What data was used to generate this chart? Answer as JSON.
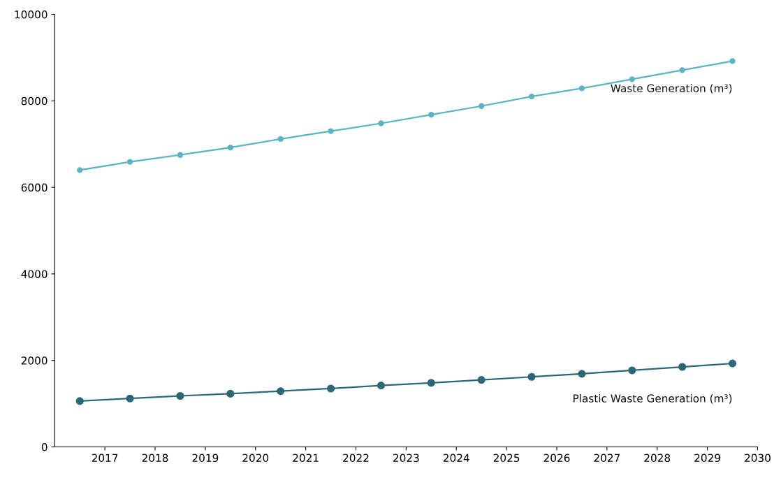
{
  "chart_data": {
    "type": "line",
    "x": [
      2016.5,
      2017.5,
      2018.5,
      2019.5,
      2020.5,
      2021.5,
      2022.5,
      2023.5,
      2024.5,
      2025.5,
      2026.5,
      2027.5,
      2028.5,
      2029.5
    ],
    "series": [
      {
        "name": "Waste Generation (m³)",
        "color": "#5ab4c5",
        "values": [
          6400,
          6590,
          6750,
          6920,
          7120,
          7300,
          7480,
          7680,
          7880,
          8100,
          8290,
          8500,
          8710,
          8920
        ]
      },
      {
        "name": "Plastic Waste Generation (m³)",
        "color": "#2a6877",
        "values": [
          1060,
          1120,
          1180,
          1230,
          1290,
          1350,
          1420,
          1480,
          1550,
          1620,
          1690,
          1770,
          1850,
          1930
        ]
      }
    ],
    "xlim": [
      2016,
      2030
    ],
    "xticks": [
      2017,
      2018,
      2019,
      2020,
      2021,
      2022,
      2023,
      2024,
      2025,
      2026,
      2027,
      2028,
      2029,
      2030
    ],
    "ylim": [
      0,
      10000
    ],
    "yticks": [
      0,
      2000,
      4000,
      6000,
      8000,
      10000
    ],
    "grid": false,
    "legend": false,
    "marker": "circle",
    "line_style": "solid"
  }
}
